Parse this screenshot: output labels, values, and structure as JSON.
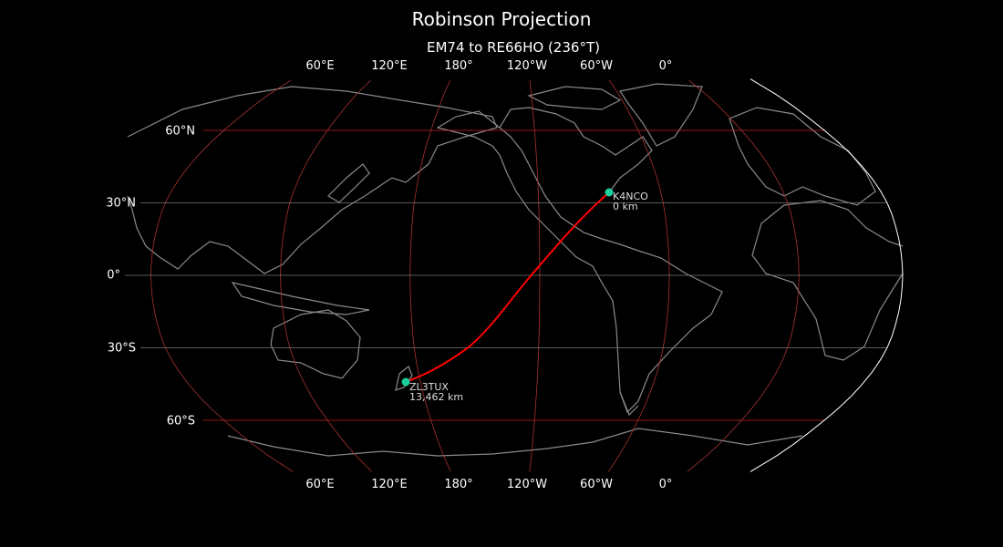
{
  "title": "Robinson Projection",
  "subtitle": "EM74 to RE66HO (236°T)",
  "lon_labels_top": [
    "60°E",
    "120°E",
    "180°",
    "120°W",
    "60°W",
    "0°"
  ],
  "lon_labels_bottom": [
    "60°E",
    "120°E",
    "180°",
    "120°W",
    "60°W",
    "0°"
  ],
  "lat_labels": [
    "60°N",
    "30°N",
    "0°",
    "30°S",
    "60°S"
  ],
  "stations": [
    {
      "call": "K4NCO",
      "distance": "0 km"
    },
    {
      "call": "ZL3TUX",
      "distance": "13,462 km"
    }
  ],
  "colors": {
    "background": "#000000",
    "coastline": "#8a8a8a",
    "graticule_meridian": "#a83232",
    "graticule_parallel_60": "#c82020",
    "graticule_parallel": "#777777",
    "path": "#ff0000",
    "marker": "#1ccf9c",
    "border": "#ffffff"
  }
}
